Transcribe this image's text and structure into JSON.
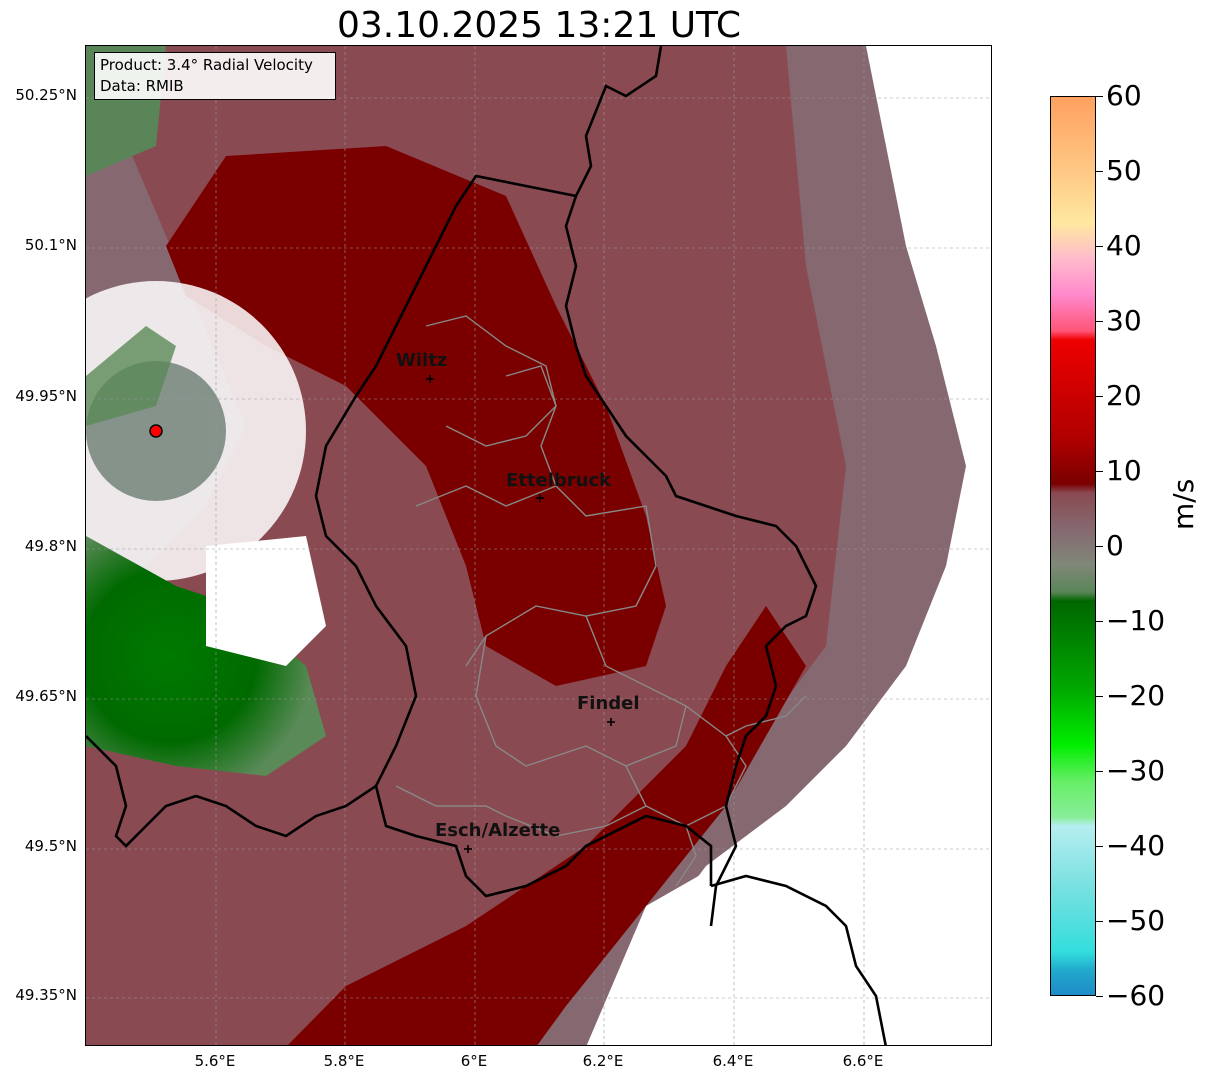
{
  "title": "03.10.2025 13:21 UTC",
  "info_box": {
    "product": "Product: 3.4° Radial Velocity",
    "data_source": "Data: RMIB"
  },
  "map_axes": {
    "lat_labels": [
      "50.25°N",
      "50.1°N",
      "49.95°N",
      "49.8°N",
      "49.65°N",
      "49.5°N",
      "49.35°N"
    ],
    "lon_labels": [
      "5.6°E",
      "5.8°E",
      "6°E",
      "6.2°E",
      "6.4°E",
      "6.6°E"
    ],
    "lat_range": [
      49.3,
      50.3
    ],
    "lon_range": [
      5.4,
      6.8
    ]
  },
  "cities": [
    {
      "name": "Wiltz",
      "lon": 5.93,
      "lat": 49.96
    },
    {
      "name": "Ettelbruck",
      "lon": 6.1,
      "lat": 49.85
    },
    {
      "name": "Findel",
      "lon": 6.21,
      "lat": 49.63
    },
    {
      "name": "Esch/Alzette",
      "lon": 5.99,
      "lat": 49.5
    }
  ],
  "radar_site": {
    "lon": 5.51,
    "lat": 49.92,
    "color": "#ff0000"
  },
  "colorbar": {
    "unit": "m/s",
    "min": -60,
    "max": 60,
    "ticks": [
      "60",
      "50",
      "40",
      "30",
      "20",
      "10",
      "0",
      "−10",
      "−20",
      "−30",
      "−40",
      "−50",
      "−60"
    ],
    "colors": {
      "strong_approach": "#1e88c8",
      "cyan": "#33dddd",
      "light_cyan": "#b5eef0",
      "light_green": "#88ee99",
      "bright_green": "#00ee00",
      "green": "#00aa00",
      "dark_green": "#006600",
      "gray_green": "#5a8558",
      "gray_mauve": "#866870",
      "dark_red": "#7a0000",
      "red": "#ee0000",
      "pink": "#ff88cc",
      "light_pink": "#ffbbcc",
      "pale_yellow": "#ffe8a0",
      "orange": "#ffa060"
    }
  }
}
